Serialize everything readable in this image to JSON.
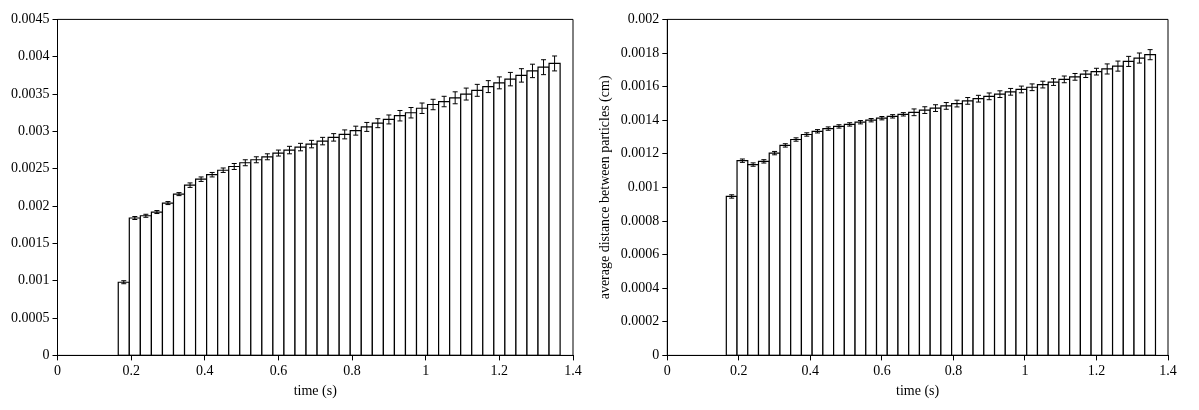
{
  "chart_data": [
    {
      "type": "histogram",
      "xlabel": "time (s)",
      "color": "#ffffff",
      "bins": [
        0.165,
        0.195,
        0.225,
        0.255,
        0.285,
        0.315,
        0.345,
        0.375,
        0.405,
        0.435,
        0.465,
        0.495,
        0.525,
        0.555,
        0.585,
        0.615,
        0.645,
        0.675,
        0.705,
        0.735,
        0.765,
        0.795,
        0.825,
        0.855,
        0.885,
        0.915,
        0.945,
        0.975,
        1.005,
        1.035,
        1.065,
        1.095,
        1.125,
        1.155,
        1.185,
        1.215,
        1.245,
        1.275,
        1.305,
        1.335,
        1.365
      ],
      "values": [
        0.00098,
        0.00184,
        0.00187,
        0.00192,
        0.00204,
        0.00216,
        0.00228,
        0.00236,
        0.00242,
        0.00248,
        0.00253,
        0.00258,
        0.00262,
        0.00266,
        0.00271,
        0.00275,
        0.00279,
        0.00283,
        0.00287,
        0.00292,
        0.00296,
        0.00301,
        0.00306,
        0.00311,
        0.00316,
        0.00321,
        0.00325,
        0.00331,
        0.00336,
        0.0034,
        0.00345,
        0.0035,
        0.00355,
        0.0036,
        0.00365,
        0.0037,
        0.00375,
        0.00381,
        0.00386,
        0.00391
      ],
      "errors": [
        2e-05,
        2e-05,
        2e-05,
        2e-05,
        2e-05,
        2e-05,
        3e-05,
        3e-05,
        3e-05,
        3e-05,
        4e-05,
        4e-05,
        4e-05,
        4e-05,
        4e-05,
        5e-05,
        5e-05,
        5e-05,
        5e-05,
        5e-05,
        6e-05,
        6e-05,
        6e-05,
        6e-05,
        6e-05,
        7e-05,
        7e-05,
        7e-05,
        7e-05,
        7e-05,
        8e-05,
        8e-05,
        8e-05,
        8e-05,
        8e-05,
        9e-05,
        9e-05,
        9e-05,
        0.0001,
        0.0001
      ],
      "xlim": [
        0,
        1.4
      ],
      "xticks": [
        0,
        0.2,
        0.4,
        0.6,
        0.8,
        1,
        1.2,
        1.4
      ],
      "ylim": [
        0,
        0.0045
      ],
      "yticks": [
        0,
        0.0005,
        0.001,
        0.0015,
        0.002,
        0.0025,
        0.003,
        0.0035,
        0.004,
        0.0045
      ],
      "grid": false,
      "legend": false
    },
    {
      "type": "histogram",
      "xlabel": "time (s)",
      "ylabel": "average distance between particles (cm)",
      "color": "#ffffff",
      "bins": [
        0.165,
        0.195,
        0.225,
        0.255,
        0.285,
        0.315,
        0.345,
        0.375,
        0.405,
        0.435,
        0.465,
        0.495,
        0.525,
        0.555,
        0.585,
        0.615,
        0.645,
        0.675,
        0.705,
        0.735,
        0.765,
        0.795,
        0.825,
        0.855,
        0.885,
        0.915,
        0.945,
        0.975,
        1.005,
        1.035,
        1.065,
        1.095,
        1.125,
        1.155,
        1.185,
        1.215,
        1.245,
        1.275,
        1.305,
        1.335,
        1.365
      ],
      "values": [
        0.000946,
        0.001159,
        0.001136,
        0.001155,
        0.001204,
        0.00125,
        0.001285,
        0.001315,
        0.001334,
        0.00135,
        0.001363,
        0.001375,
        0.001388,
        0.0014,
        0.001412,
        0.001423,
        0.001435,
        0.001447,
        0.00146,
        0.001472,
        0.001485,
        0.001499,
        0.001515,
        0.001528,
        0.001542,
        0.001555,
        0.001569,
        0.001583,
        0.001596,
        0.001612,
        0.001627,
        0.001643,
        0.001658,
        0.001674,
        0.001689,
        0.001705,
        0.001722,
        0.00175,
        0.00177,
        0.00179
      ],
      "errors": [
        1e-05,
        1e-05,
        1e-05,
        1e-05,
        1e-05,
        1e-05,
        1e-05,
        1e-05,
        1e-05,
        1e-05,
        1e-05,
        1e-05,
        1e-05,
        1e-05,
        1e-05,
        1e-05,
        1e-05,
        2e-05,
        2e-05,
        2e-05,
        2e-05,
        2e-05,
        2e-05,
        2e-05,
        2e-05,
        2e-05,
        2e-05,
        2e-05,
        2e-05,
        2e-05,
        2e-05,
        2e-05,
        2e-05,
        2e-05,
        2e-05,
        3e-05,
        3e-05,
        3e-05,
        3e-05,
        3e-05
      ],
      "xlim": [
        0,
        1.4
      ],
      "xticks": [
        0,
        0.2,
        0.4,
        0.6,
        0.8,
        1,
        1.2,
        1.4
      ],
      "ylim": [
        0,
        0.002
      ],
      "yticks": [
        0,
        0.0002,
        0.0004,
        0.0006,
        0.0008,
        0.001,
        0.0012,
        0.0014,
        0.0016,
        0.0018,
        0.002
      ],
      "grid": false,
      "legend": false
    }
  ]
}
